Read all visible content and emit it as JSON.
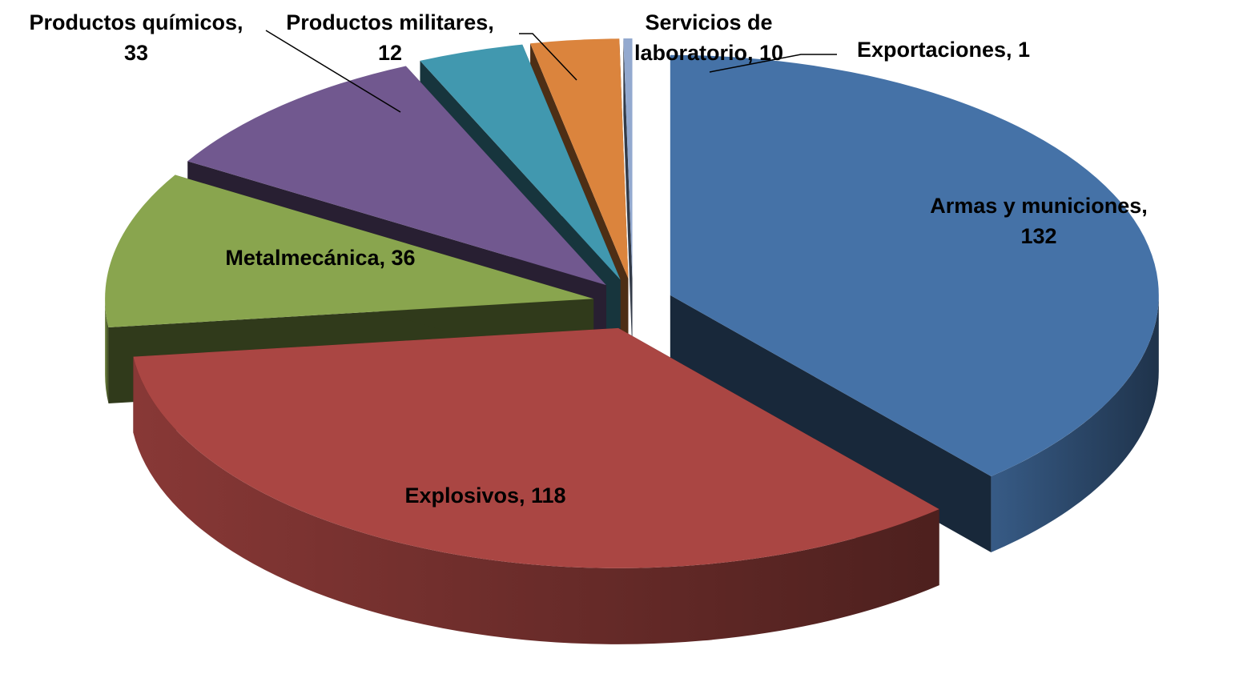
{
  "chart_data": {
    "type": "pie3d",
    "values": [
      132,
      118,
      36,
      33,
      12,
      10,
      1
    ],
    "value_labels": [
      "Armas y municiones,\n132",
      "Explosivos, 118",
      "Metalmecánica, 36",
      "Productos químicos,\n33",
      "Productos militares,\n12",
      "Servicios de\nlaboratorio, 10",
      "Exportaciones, 1"
    ],
    "colors": [
      "#4572a7",
      "#aa4643",
      "#89a54e",
      "#71588f",
      "#4198af",
      "#db843d",
      "#93a9cf"
    ]
  }
}
